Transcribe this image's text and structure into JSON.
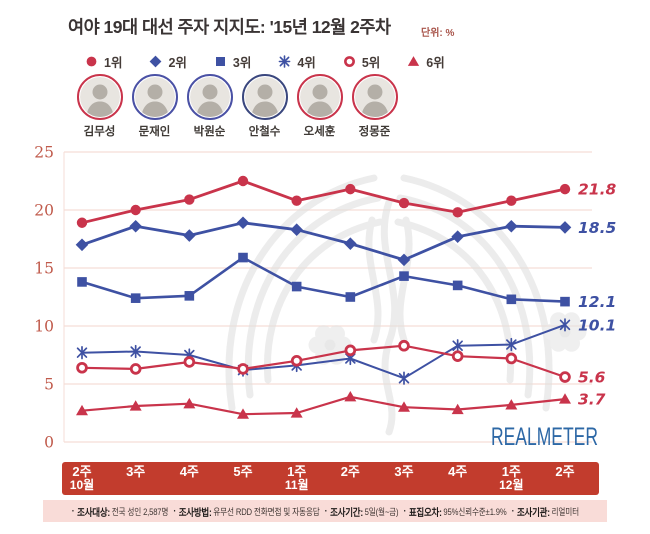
{
  "title": "여야 19대 대선 주자 지지도: '15년 12월 2주차",
  "unit_label": "단위: %",
  "logo": "REALMETER",
  "colors": {
    "series_red": "#c9344b",
    "series_blue": "#3e51a3",
    "axis_tick": "#c05a4b",
    "gridline": "#f5ded7",
    "xbar_bg": "#c23c2d",
    "xbar_text": "#ffffff",
    "footer_bg": "#f9dcd8",
    "logo_blue": "#2d68a6",
    "title_color": "#3a3434",
    "unit_color": "#a8544a"
  },
  "candidates": [
    {
      "name": "김무성",
      "ring": "#c9344b"
    },
    {
      "name": "문재인",
      "ring": "#4a51a5"
    },
    {
      "name": "박원순",
      "ring": "#4a51a5"
    },
    {
      "name": "안철수",
      "ring": "#3a477e"
    },
    {
      "name": "오세훈",
      "ring": "#c9344b"
    },
    {
      "name": "정몽준",
      "ring": "#c9344b"
    }
  ],
  "chart_data": {
    "type": "line",
    "title": "여야 19대 대선 주자 지지도: '15년 12월 2주차",
    "ylabel": "%",
    "ylim": [
      0,
      25
    ],
    "yticks": [
      0,
      5,
      10,
      15,
      20,
      25
    ],
    "grid": true,
    "legend_position": "top",
    "x": [
      "10월 2주",
      "10월 3주",
      "10월 4주",
      "10월 5주",
      "11월 1주",
      "11월 2주",
      "11월 3주",
      "11월 4주",
      "12월 1주",
      "12월 2주"
    ],
    "x_ticks": [
      {
        "week": "2주",
        "month": "10월"
      },
      {
        "week": "3주",
        "month": ""
      },
      {
        "week": "4주",
        "month": ""
      },
      {
        "week": "5주",
        "month": ""
      },
      {
        "week": "1주",
        "month": "11월"
      },
      {
        "week": "2주",
        "month": ""
      },
      {
        "week": "3주",
        "month": ""
      },
      {
        "week": "4주",
        "month": ""
      },
      {
        "week": "1주",
        "month": "12월"
      },
      {
        "week": "2주",
        "month": ""
      }
    ],
    "series": [
      {
        "rank": "1위",
        "candidate": "김무성",
        "marker": "circle",
        "color": "#c9344b",
        "values": [
          18.9,
          20.0,
          20.9,
          22.5,
          20.8,
          21.8,
          20.6,
          19.8,
          20.8,
          21.8
        ],
        "end_label": "21.8"
      },
      {
        "rank": "2위",
        "candidate": "문재인",
        "marker": "diamond",
        "color": "#3e51a3",
        "values": [
          17.0,
          18.6,
          17.8,
          18.9,
          18.3,
          17.1,
          15.7,
          17.7,
          18.6,
          18.5
        ],
        "end_label": "18.5"
      },
      {
        "rank": "3위",
        "candidate": "박원순",
        "marker": "square",
        "color": "#3e51a3",
        "values": [
          13.8,
          12.4,
          12.6,
          15.9,
          13.4,
          12.5,
          14.3,
          13.5,
          12.3,
          12.1
        ],
        "end_label": "12.1"
      },
      {
        "rank": "4위",
        "candidate": "안철수",
        "marker": "asterisk",
        "color": "#3e51a3",
        "values": [
          7.7,
          7.8,
          7.5,
          6.2,
          6.6,
          7.2,
          5.5,
          8.3,
          8.4,
          10.1
        ],
        "end_label": "10.1"
      },
      {
        "rank": "5위",
        "candidate": "오세훈",
        "marker": "open-circle",
        "color": "#c9344b",
        "values": [
          6.4,
          6.3,
          6.9,
          6.3,
          7.0,
          7.9,
          8.3,
          7.4,
          7.2,
          5.6
        ],
        "end_label": "5.6"
      },
      {
        "rank": "6위",
        "candidate": "정몽준",
        "marker": "triangle",
        "color": "#c9344b",
        "values": [
          2.7,
          3.1,
          3.3,
          2.4,
          2.5,
          3.9,
          3.0,
          2.8,
          3.2,
          3.7
        ],
        "end_label": "3.7"
      }
    ]
  },
  "footer": {
    "items": [
      {
        "label": "조사대상:",
        "value": "전국 성인 2,587명"
      },
      {
        "label": "조사방법:",
        "value": "유무선 RDD 전화면접 및 자동응답"
      },
      {
        "label": "조사기간:",
        "value": "5일(월~금)"
      },
      {
        "label": "표집오차:",
        "value": "95%신뢰수준±1.9%"
      },
      {
        "label": "조사기관:",
        "value": "리얼미터"
      }
    ]
  }
}
